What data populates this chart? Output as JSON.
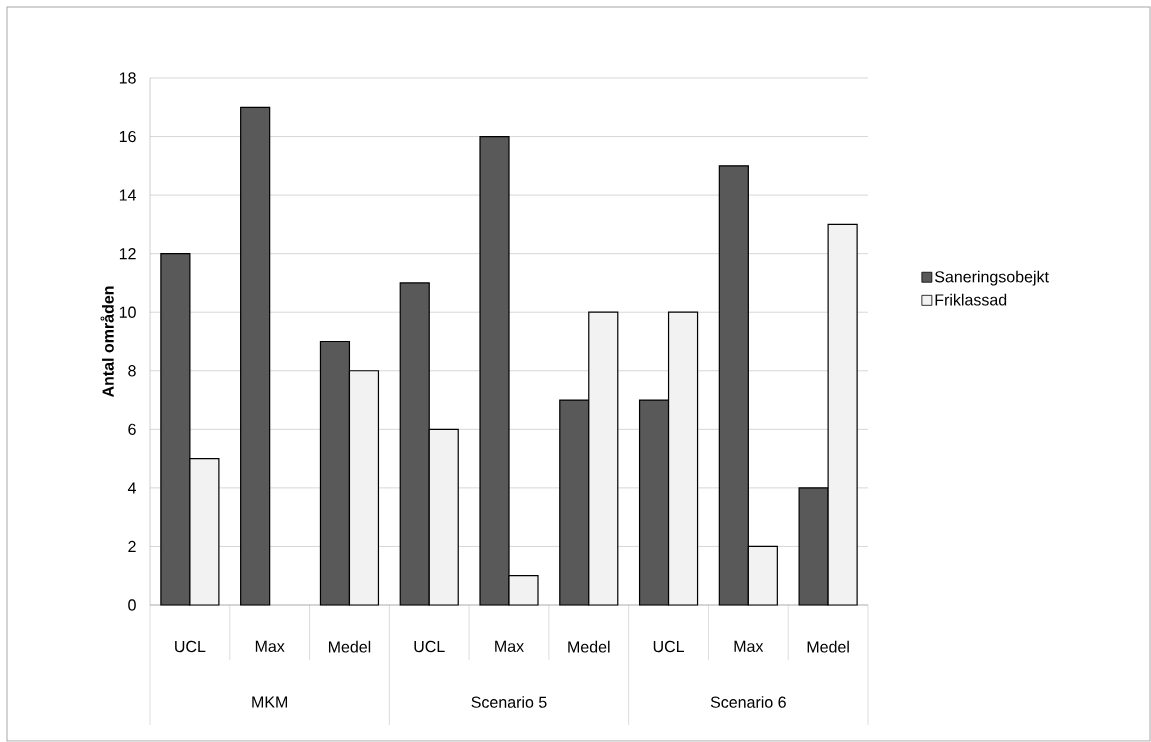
{
  "chart_data": {
    "type": "bar",
    "ylabel": "Antal områden",
    "categories": [
      "UCL",
      "Max",
      "Medel",
      "UCL",
      "Max",
      "Medel",
      "UCL",
      "Max",
      "Medel"
    ],
    "series": [
      {
        "name": "Saneringsobejkt",
        "color": "#595959",
        "values": [
          12,
          17,
          9,
          11,
          16,
          7,
          7,
          15,
          4
        ]
      },
      {
        "name": "Friklassad",
        "color": "#f2f2f2",
        "values": [
          5,
          null,
          8,
          6,
          1,
          10,
          10,
          2,
          13
        ]
      }
    ],
    "annotations": [
      "MKM",
      "Scenario 5",
      "Scenario 6"
    ],
    "ylim": [
      0,
      18
    ],
    "yticks": [
      0,
      2,
      4,
      6,
      8,
      10,
      12,
      14,
      16,
      18
    ],
    "grid": "y",
    "legend": "right"
  }
}
